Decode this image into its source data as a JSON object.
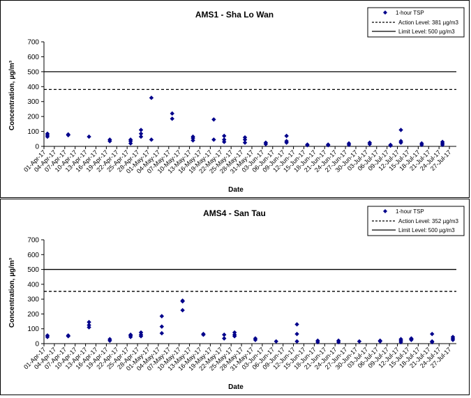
{
  "chart_data": [
    {
      "type": "scatter",
      "title": "AMS1 - Sha Lo Wan",
      "xlabel": "Date",
      "ylabel": "Concentration, µg/m³",
      "ylim": [
        0,
        700
      ],
      "yticks": [
        0,
        100,
        200,
        300,
        400,
        500,
        600,
        700
      ],
      "grid": false,
      "legend_position": "top-right",
      "xticks": [
        "01-Apr-17",
        "04-Apr-17",
        "07-Apr-17",
        "10-Apr-17",
        "13-Apr-17",
        "16-Apr-17",
        "19-Apr-17",
        "22-Apr-17",
        "25-Apr-17",
        "28-Apr-17",
        "01-May-17",
        "04-May-17",
        "07-May-17",
        "10-May-17",
        "13-May-17",
        "16-May-17",
        "19-May-17",
        "22-May-17",
        "25-May-17",
        "28-May-17",
        "31-May-17",
        "03-Jun-17",
        "06-Jun-17",
        "09-Jun-17",
        "12-Jun-17",
        "15-Jun-17",
        "18-Jun-17",
        "21-Jun-17",
        "24-Jun-17",
        "27-Jun-17",
        "30-Jun-17",
        "03-Jul-17",
        "06-Jul-17",
        "09-Jul-17",
        "12-Jul-17",
        "15-Jul-17",
        "18-Jul-17",
        "21-Jul-17",
        "24-Jul-17",
        "27-Jul-17"
      ],
      "series": [
        {
          "name": "1-hour TSP",
          "style": "markers",
          "color": "#00008b",
          "points": [
            [
              "02-Apr-17",
              65
            ],
            [
              "02-Apr-17",
              75
            ],
            [
              "02-Apr-17",
              85
            ],
            [
              "08-Apr-17",
              75
            ],
            [
              "08-Apr-17",
              80
            ],
            [
              "14-Apr-17",
              65
            ],
            [
              "20-Apr-17",
              35
            ],
            [
              "20-Apr-17",
              45
            ],
            [
              "26-Apr-17",
              20
            ],
            [
              "26-Apr-17",
              35
            ],
            [
              "26-Apr-17",
              45
            ],
            [
              "29-Apr-17",
              65
            ],
            [
              "29-Apr-17",
              85
            ],
            [
              "29-Apr-17",
              110
            ],
            [
              "02-May-17",
              45
            ],
            [
              "02-May-17",
              325
            ],
            [
              "08-May-17",
              185
            ],
            [
              "08-May-17",
              220
            ],
            [
              "14-May-17",
              40
            ],
            [
              "14-May-17",
              55
            ],
            [
              "14-May-17",
              65
            ],
            [
              "20-May-17",
              45
            ],
            [
              "20-May-17",
              180
            ],
            [
              "23-May-17",
              30
            ],
            [
              "23-May-17",
              45
            ],
            [
              "23-May-17",
              70
            ],
            [
              "29-May-17",
              25
            ],
            [
              "29-May-17",
              45
            ],
            [
              "29-May-17",
              60
            ],
            [
              "04-Jun-17",
              15
            ],
            [
              "04-Jun-17",
              25
            ],
            [
              "10-Jun-17",
              25
            ],
            [
              "10-Jun-17",
              35
            ],
            [
              "10-Jun-17",
              70
            ],
            [
              "16-Jun-17",
              8
            ],
            [
              "16-Jun-17",
              12
            ],
            [
              "22-Jun-17",
              8
            ],
            [
              "22-Jun-17",
              12
            ],
            [
              "28-Jun-17",
              10
            ],
            [
              "28-Jun-17",
              20
            ],
            [
              "04-Jul-17",
              15
            ],
            [
              "04-Jul-17",
              25
            ],
            [
              "10-Jul-17",
              5
            ],
            [
              "10-Jul-17",
              10
            ],
            [
              "13-Jul-17",
              25
            ],
            [
              "13-Jul-17",
              35
            ],
            [
              "13-Jul-17",
              110
            ],
            [
              "19-Jul-17",
              10
            ],
            [
              "19-Jul-17",
              20
            ],
            [
              "25-Jul-17",
              10
            ],
            [
              "25-Jul-17",
              20
            ],
            [
              "25-Jul-17",
              30
            ]
          ]
        },
        {
          "name": "Action Level: 381 µg/m3",
          "style": "dashed",
          "value": 381
        },
        {
          "name": "Limit Level: 500 µg/m3",
          "style": "solid",
          "value": 500
        }
      ]
    },
    {
      "type": "scatter",
      "title": "AMS4 - San Tau",
      "xlabel": "Date",
      "ylabel": "Concentration, µg/m³",
      "ylim": [
        0,
        700
      ],
      "yticks": [
        0,
        100,
        200,
        300,
        400,
        500,
        600,
        700
      ],
      "grid": false,
      "legend_position": "top-right",
      "xticks": [
        "01-Apr-17",
        "04-Apr-17",
        "07-Apr-17",
        "10-Apr-17",
        "13-Apr-17",
        "16-Apr-17",
        "19-Apr-17",
        "22-Apr-17",
        "25-Apr-17",
        "28-Apr-17",
        "01-May-17",
        "04-May-17",
        "07-May-17",
        "10-May-17",
        "13-May-17",
        "16-May-17",
        "19-May-17",
        "22-May-17",
        "25-May-17",
        "28-May-17",
        "31-May-17",
        "03-Jun-17",
        "06-Jun-17",
        "09-Jun-17",
        "12-Jun-17",
        "15-Jun-17",
        "18-Jun-17",
        "21-Jun-17",
        "24-Jun-17",
        "27-Jun-17",
        "30-Jun-17",
        "03-Jul-17",
        "06-Jul-17",
        "09-Jul-17",
        "12-Jul-17",
        "15-Jul-17",
        "18-Jul-17",
        "21-Jul-17",
        "24-Jul-17",
        "27-Jul-17"
      ],
      "series": [
        {
          "name": "1-hour TSP",
          "style": "markers",
          "color": "#00008b",
          "points": [
            [
              "02-Apr-17",
              45
            ],
            [
              "02-Apr-17",
              55
            ],
            [
              "08-Apr-17",
              50
            ],
            [
              "08-Apr-17",
              55
            ],
            [
              "14-Apr-17",
              110
            ],
            [
              "14-Apr-17",
              125
            ],
            [
              "14-Apr-17",
              145
            ],
            [
              "20-Apr-17",
              20
            ],
            [
              "20-Apr-17",
              30
            ],
            [
              "26-Apr-17",
              45
            ],
            [
              "26-Apr-17",
              55
            ],
            [
              "26-Apr-17",
              60
            ],
            [
              "29-Apr-17",
              50
            ],
            [
              "29-Apr-17",
              60
            ],
            [
              "29-Apr-17",
              75
            ],
            [
              "05-May-17",
              70
            ],
            [
              "05-May-17",
              115
            ],
            [
              "05-May-17",
              185
            ],
            [
              "11-May-17",
              225
            ],
            [
              "11-May-17",
              285
            ],
            [
              "11-May-17",
              290
            ],
            [
              "17-May-17",
              60
            ],
            [
              "17-May-17",
              65
            ],
            [
              "23-May-17",
              35
            ],
            [
              "23-May-17",
              60
            ],
            [
              "26-May-17",
              50
            ],
            [
              "26-May-17",
              60
            ],
            [
              "26-May-17",
              75
            ],
            [
              "01-Jun-17",
              25
            ],
            [
              "01-Jun-17",
              35
            ],
            [
              "07-Jun-17",
              15
            ],
            [
              "13-Jun-17",
              15
            ],
            [
              "13-Jun-17",
              65
            ],
            [
              "13-Jun-17",
              130
            ],
            [
              "19-Jun-17",
              10
            ],
            [
              "19-Jun-17",
              20
            ],
            [
              "25-Jun-17",
              10
            ],
            [
              "25-Jun-17",
              20
            ],
            [
              "01-Jul-17",
              15
            ],
            [
              "07-Jul-17",
              15
            ],
            [
              "07-Jul-17",
              20
            ],
            [
              "13-Jul-17",
              10
            ],
            [
              "13-Jul-17",
              20
            ],
            [
              "13-Jul-17",
              30
            ],
            [
              "16-Jul-17",
              25
            ],
            [
              "16-Jul-17",
              30
            ],
            [
              "16-Jul-17",
              35
            ],
            [
              "22-Jul-17",
              10
            ],
            [
              "22-Jul-17",
              15
            ],
            [
              "22-Jul-17",
              65
            ],
            [
              "28-Jul-17",
              25
            ],
            [
              "28-Jul-17",
              35
            ],
            [
              "28-Jul-17",
              45
            ]
          ]
        },
        {
          "name": "Action Level: 352 µg/m3",
          "style": "dashed",
          "value": 352
        },
        {
          "name": "Limit Level: 500 µg/m3",
          "style": "solid",
          "value": 500
        }
      ]
    }
  ]
}
